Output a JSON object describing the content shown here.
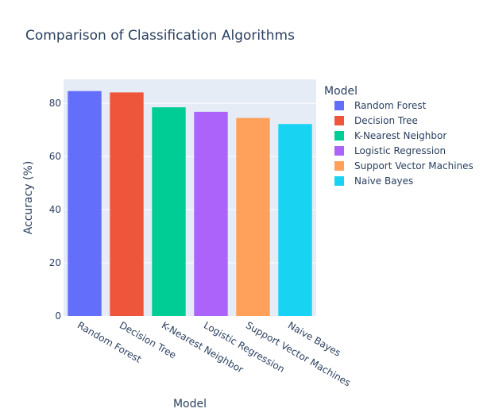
{
  "chart_data": {
    "type": "bar",
    "title": "Comparison of Classification Algorithms",
    "xlabel": "Model",
    "ylabel": "Accuracy (%)",
    "categories": [
      "Random Forest",
      "Decision Tree",
      "K-Nearest Neighbor",
      "Logistic Regression",
      "Support Vector Machines",
      "Naive Bayes"
    ],
    "values": [
      84.6,
      84.1,
      78.5,
      76.8,
      74.5,
      72.2
    ],
    "colors": [
      "#636efa",
      "#ef553b",
      "#00cc96",
      "#ab63fa",
      "#ffa15a",
      "#19d3f3"
    ],
    "ylim": [
      0,
      89
    ],
    "yticks": [
      0,
      20,
      40,
      60,
      80
    ],
    "grid": true,
    "legend": {
      "title": "Model",
      "placement": "right",
      "entries": [
        "Random Forest",
        "Decision Tree",
        "K-Nearest Neighbor",
        "Logistic Regression",
        "Support Vector Machines",
        "Naive Bayes"
      ]
    },
    "plot_background": "#e5ecf6"
  }
}
